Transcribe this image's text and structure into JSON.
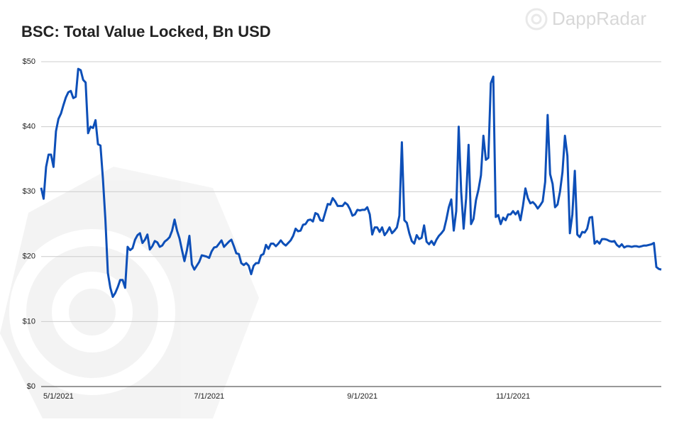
{
  "chart_data": {
    "type": "line",
    "title": "BSC: Total Value Locked, Bn USD",
    "watermark": "DappRadar",
    "color": "#0d4fb8",
    "grid": true,
    "x": [
      "4/24/2021",
      "4/25/2021",
      "4/26/2021",
      "4/27/2021",
      "4/28/2021",
      "4/29/2021",
      "4/30/2021",
      "5/1/2021",
      "5/2/2021",
      "5/3/2021",
      "5/4/2021",
      "5/5/2021",
      "5/6/2021",
      "5/7/2021",
      "5/8/2021",
      "5/9/2021",
      "5/10/2021",
      "5/11/2021",
      "5/12/2021",
      "5/13/2021",
      "5/14/2021",
      "5/15/2021",
      "5/16/2021",
      "5/17/2021",
      "5/18/2021",
      "5/19/2021",
      "5/20/2021",
      "5/21/2021",
      "5/22/2021",
      "5/23/2021",
      "5/24/2021",
      "5/25/2021",
      "5/26/2021",
      "5/27/2021",
      "5/28/2021",
      "5/29/2021",
      "5/30/2021",
      "5/31/2021",
      "6/1/2021",
      "6/2/2021",
      "6/3/2021",
      "6/4/2021",
      "6/5/2021",
      "6/6/2021",
      "6/7/2021",
      "6/8/2021",
      "6/9/2021",
      "6/10/2021",
      "6/11/2021",
      "6/12/2021",
      "6/13/2021",
      "6/14/2021",
      "6/15/2021",
      "6/16/2021",
      "6/17/2021",
      "6/18/2021",
      "6/19/2021",
      "6/20/2021",
      "6/21/2021",
      "6/22/2021",
      "6/23/2021",
      "6/24/2021",
      "6/25/2021",
      "6/26/2021",
      "6/27/2021",
      "6/28/2021",
      "6/29/2021",
      "6/30/2021",
      "7/1/2021",
      "7/2/2021",
      "7/3/2021",
      "7/4/2021",
      "7/5/2021",
      "7/6/2021",
      "7/7/2021",
      "7/8/2021",
      "7/9/2021",
      "7/10/2021",
      "7/11/2021",
      "7/12/2021",
      "7/13/2021",
      "7/14/2021",
      "7/15/2021",
      "7/16/2021",
      "7/17/2021",
      "7/18/2021",
      "7/19/2021",
      "7/20/2021",
      "7/21/2021",
      "7/22/2021",
      "7/23/2021",
      "7/24/2021",
      "7/25/2021",
      "7/26/2021",
      "7/27/2021",
      "7/28/2021",
      "7/29/2021",
      "7/30/2021",
      "7/31/2021",
      "8/1/2021",
      "8/2/2021",
      "8/3/2021",
      "8/4/2021",
      "8/5/2021",
      "8/6/2021",
      "8/7/2021",
      "8/8/2021",
      "8/9/2021",
      "8/10/2021",
      "8/11/2021",
      "8/12/2021",
      "8/13/2021",
      "8/14/2021",
      "8/15/2021",
      "8/16/2021",
      "8/17/2021",
      "8/18/2021",
      "8/19/2021",
      "8/20/2021",
      "8/21/2021",
      "8/22/2021",
      "8/23/2021",
      "8/24/2021",
      "8/25/2021",
      "8/26/2021",
      "8/27/2021",
      "8/28/2021",
      "8/29/2021",
      "8/30/2021",
      "8/31/2021",
      "9/1/2021",
      "9/2/2021",
      "9/3/2021",
      "9/4/2021",
      "9/5/2021",
      "9/6/2021",
      "9/7/2021",
      "9/8/2021",
      "9/9/2021",
      "9/10/2021",
      "9/11/2021",
      "9/12/2021",
      "9/13/2021",
      "9/14/2021",
      "9/15/2021",
      "9/16/2021",
      "9/17/2021",
      "9/18/2021",
      "9/19/2021",
      "9/20/2021",
      "9/21/2021",
      "9/22/2021",
      "9/23/2021",
      "9/24/2021",
      "9/25/2021",
      "9/26/2021",
      "9/27/2021",
      "9/28/2021",
      "9/29/2021",
      "9/30/2021",
      "10/1/2021",
      "10/2/2021",
      "10/3/2021",
      "10/4/2021",
      "10/5/2021",
      "10/6/2021",
      "10/7/2021",
      "10/8/2021",
      "10/9/2021",
      "10/10/2021",
      "10/11/2021",
      "10/12/2021",
      "10/13/2021",
      "10/14/2021",
      "10/15/2021",
      "10/16/2021",
      "10/17/2021",
      "10/18/2021",
      "10/19/2021",
      "10/20/2021",
      "10/21/2021",
      "10/22/2021",
      "10/23/2021",
      "10/24/2021",
      "10/25/2021",
      "10/26/2021",
      "10/27/2021",
      "10/28/2021",
      "10/29/2021",
      "10/30/2021",
      "10/31/2021",
      "11/1/2021",
      "11/2/2021",
      "11/3/2021",
      "11/4/2021",
      "11/5/2021",
      "11/6/2021",
      "11/7/2021",
      "11/8/2021",
      "11/9/2021",
      "11/10/2021",
      "11/11/2021",
      "11/12/2021",
      "11/13/2021",
      "11/14/2021",
      "11/15/2021",
      "11/16/2021",
      "11/17/2021",
      "11/18/2021",
      "11/19/2021",
      "11/20/2021",
      "11/21/2021",
      "11/22/2021",
      "11/23/2021",
      "11/24/2021",
      "11/25/2021",
      "11/26/2021",
      "11/27/2021",
      "11/28/2021",
      "11/29/2021",
      "11/30/2021",
      "12/1/2021",
      "12/2/2021",
      "12/3/2021",
      "12/4/2021",
      "12/5/2021",
      "12/6/2021",
      "12/7/2021",
      "12/8/2021",
      "12/9/2021",
      "12/10/2021",
      "12/11/2021",
      "12/12/2021",
      "12/13/2021",
      "12/14/2021",
      "12/15/2021",
      "12/16/2021",
      "12/17/2021",
      "12/18/2021",
      "12/19/2021",
      "12/20/2021",
      "12/21/2021",
      "12/22/2021",
      "12/23/2021",
      "12/24/2021",
      "12/25/2021",
      "12/26/2021",
      "12/27/2021",
      "12/28/2021",
      "12/29/2021",
      "12/30/2021",
      "12/31/2021"
    ],
    "values": [
      30.6,
      28.9,
      33.8,
      35.7,
      35.7,
      33.8,
      39.3,
      41.2,
      42.0,
      43.3,
      44.5,
      45.3,
      45.5,
      44.4,
      44.6,
      48.9,
      48.7,
      47.2,
      46.8,
      39.0,
      40.0,
      39.8,
      41.0,
      37.3,
      37.1,
      32.0,
      25.7,
      17.5,
      15.2,
      13.8,
      14.4,
      15.3,
      16.4,
      16.4,
      15.2,
      21.5,
      21.0,
      21.3,
      22.6,
      23.3,
      23.6,
      22.1,
      22.6,
      23.4,
      21.1,
      21.6,
      22.4,
      22.2,
      21.5,
      21.7,
      22.3,
      22.6,
      23.0,
      24.0,
      25.7,
      24.0,
      22.8,
      21.0,
      19.3,
      21.0,
      23.2,
      18.8,
      18.0,
      18.6,
      19.2,
      20.2,
      20.1,
      20.0,
      19.8,
      20.8,
      21.4,
      21.5,
      22.0,
      22.5,
      21.5,
      21.9,
      22.3,
      22.6,
      21.6,
      20.5,
      20.4,
      19.0,
      18.7,
      19.0,
      18.6,
      17.3,
      18.6,
      19.0,
      19.0,
      20.2,
      20.4,
      21.8,
      21.2,
      22.0,
      22.0,
      21.6,
      22.0,
      22.5,
      22.0,
      21.7,
      22.1,
      22.5,
      23.2,
      24.3,
      23.9,
      24.0,
      24.9,
      25.0,
      25.6,
      25.7,
      25.4,
      26.7,
      26.5,
      25.6,
      25.5,
      26.8,
      28.1,
      28.0,
      29.0,
      28.5,
      27.8,
      27.8,
      27.8,
      28.3,
      28.0,
      27.3,
      26.3,
      26.5,
      27.2,
      27.1,
      27.2,
      27.2,
      27.6,
      26.5,
      23.4,
      24.5,
      24.5,
      23.8,
      24.5,
      23.3,
      23.8,
      24.5,
      23.6,
      24.0,
      24.5,
      26.3,
      37.6,
      25.6,
      25.2,
      23.6,
      22.4,
      22.0,
      23.3,
      22.7,
      22.9,
      24.8,
      22.3,
      21.9,
      22.4,
      21.8,
      22.6,
      23.2,
      23.6,
      24.1,
      25.7,
      27.6,
      28.8,
      24.0,
      27.0,
      40.0,
      30.0,
      24.3,
      29.0,
      37.2,
      25.0,
      25.8,
      28.7,
      30.3,
      32.5,
      38.6,
      34.9,
      35.2,
      46.7,
      47.7,
      26.1,
      26.4,
      25.0,
      26.0,
      25.6,
      26.5,
      26.5,
      27.0,
      26.5,
      27.0,
      25.6,
      27.8,
      30.5,
      29.0,
      28.2,
      28.4,
      28.0,
      27.4,
      27.9,
      28.5,
      31.5,
      41.8,
      32.7,
      31.2,
      27.6,
      28.0,
      30.0,
      33.0,
      38.6,
      35.5,
      23.6,
      26.5,
      33.2,
      23.4,
      23.0,
      23.8,
      23.7,
      24.3,
      26.0,
      26.1,
      22.0,
      22.4,
      22.0,
      22.7,
      22.7,
      22.6,
      22.4,
      22.3,
      22.4,
      21.8,
      21.5,
      21.9,
      21.4,
      21.6,
      21.6,
      21.5,
      21.6,
      21.6,
      21.5,
      21.6,
      21.7,
      21.7,
      21.8,
      21.9,
      22.1,
      18.4,
      18.1,
      18.0
    ],
    "xlim": [
      "4/24/2021",
      "12/31/2021"
    ],
    "xticks": [
      "5/1/2021",
      "7/1/2021",
      "9/1/2021",
      "11/1/2021"
    ],
    "ylim": [
      0,
      50
    ],
    "yticks": [
      {
        "value": 0,
        "label": "$0"
      },
      {
        "value": 10,
        "label": "$10"
      },
      {
        "value": 20,
        "label": "$20"
      },
      {
        "value": 30,
        "label": "$30"
      },
      {
        "value": 40,
        "label": "$40"
      },
      {
        "value": 50,
        "label": "$50"
      }
    ]
  }
}
